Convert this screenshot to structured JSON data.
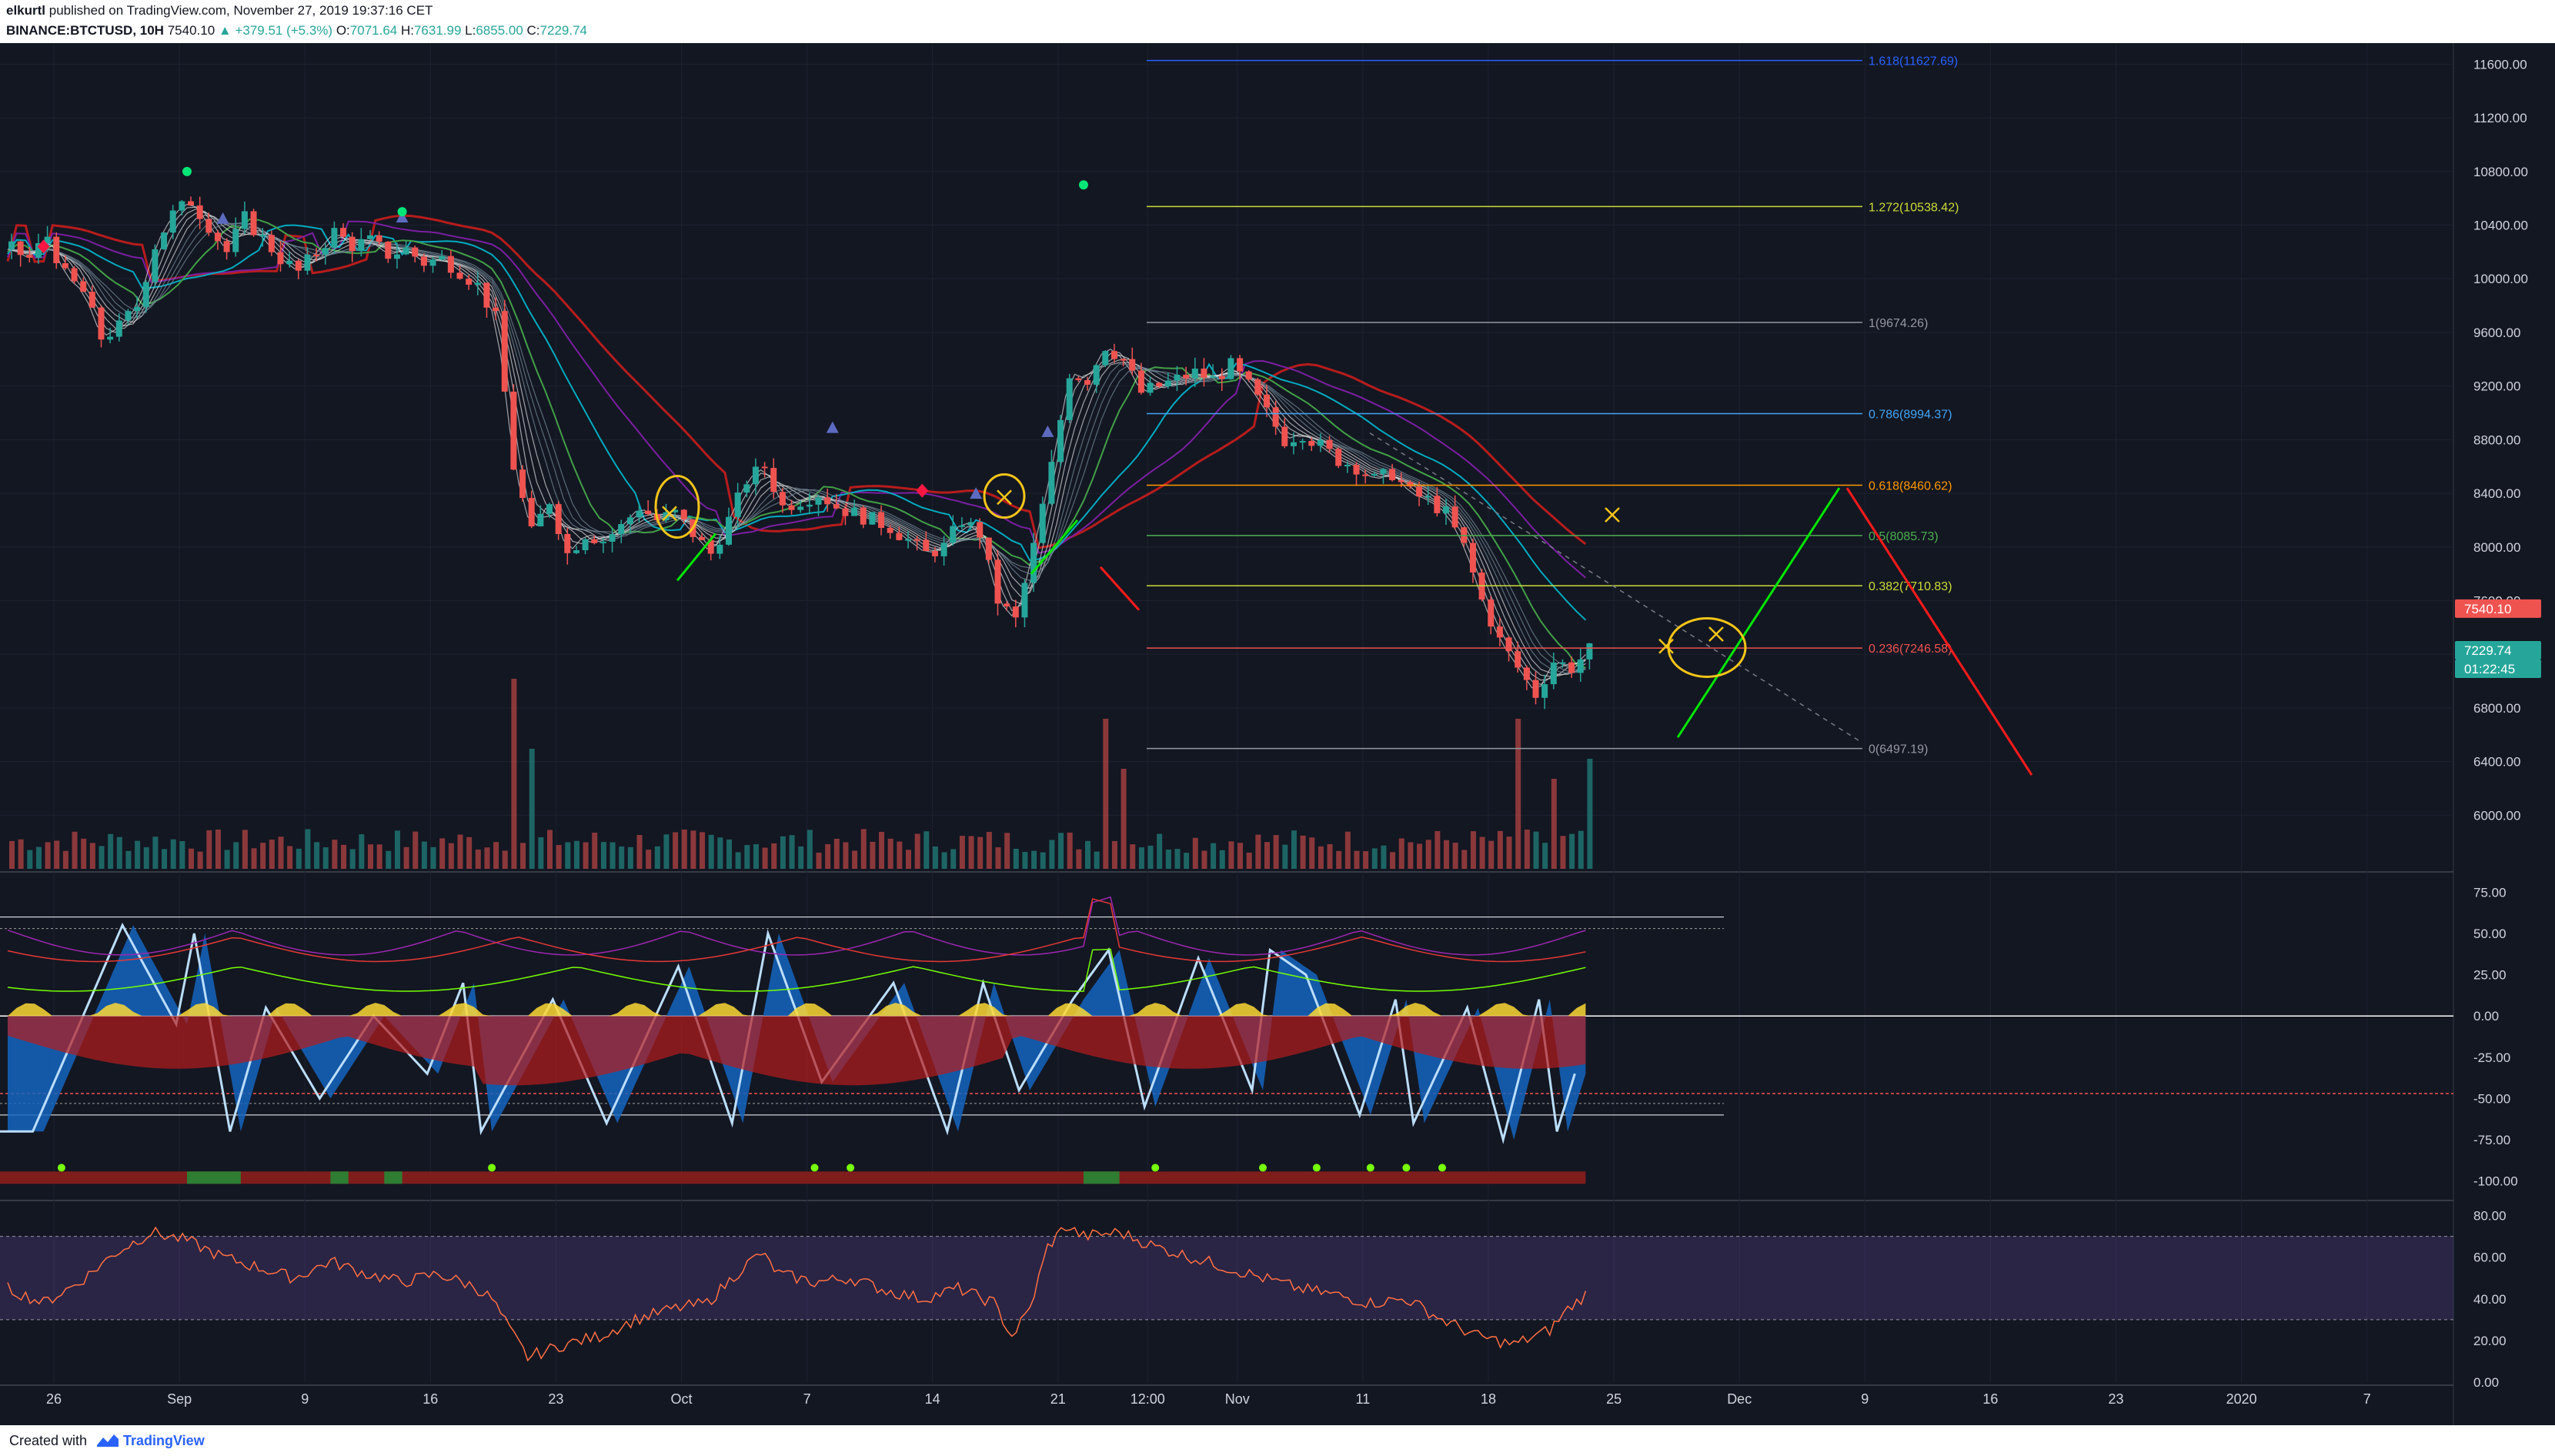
{
  "header": {
    "author": "elkurtl",
    "published_text": "published on TradingView.com, November 27, 2019 19:37:16 CET",
    "symbol": "BINANCE:BTCTUSD, 10H",
    "last": "7540.10",
    "change": "▲ +379.51 (+5.3%)",
    "o_label": "O:",
    "o_value": "7071.64",
    "h_label": "H:",
    "h_value": "7631.99",
    "l_label": "L:",
    "l_value": "6855.00",
    "c_label": "C:",
    "c_value": "7229.74"
  },
  "footer": {
    "created_with": "Created with",
    "brand": "TradingView"
  },
  "colors": {
    "bg": "#131722",
    "grid": "#1e2230",
    "axis_text": "#d1d4dc",
    "up": "#26a69a",
    "down": "#ef5350",
    "fib_text": "#b2b5be",
    "green_line": "#00e600",
    "red_line": "#ff1a1a",
    "yellow": "#f5c518"
  },
  "time_axis": {
    "labels": [
      {
        "t": 0,
        "text": "26"
      },
      {
        "t": 7,
        "text": "Sep"
      },
      {
        "t": 14,
        "text": "9"
      },
      {
        "t": 21,
        "text": "16"
      },
      {
        "t": 28,
        "text": "23"
      },
      {
        "t": 35,
        "text": "Oct"
      },
      {
        "t": 42,
        "text": "7"
      },
      {
        "t": 49,
        "text": "14"
      },
      {
        "t": 56,
        "text": "21"
      },
      {
        "t": 61,
        "text": "12:00"
      },
      {
        "t": 66,
        "text": "Nov"
      },
      {
        "t": 73,
        "text": "11"
      },
      {
        "t": 80,
        "text": "18"
      },
      {
        "t": 87,
        "text": "25"
      },
      {
        "t": 94,
        "text": "Dec"
      },
      {
        "t": 101,
        "text": "9"
      },
      {
        "t": 108,
        "text": "16"
      },
      {
        "t": 115,
        "text": "23"
      },
      {
        "t": 122,
        "text": "2020"
      },
      {
        "t": 129,
        "text": "7"
      }
    ]
  },
  "chart_data": [
    {
      "type": "candlestick",
      "title": "",
      "price_axis_ticks": [
        "11600.00",
        "11200.00",
        "10800.00",
        "10400.00",
        "10000.00",
        "9600.00",
        "9200.00",
        "8800.00",
        "8400.00",
        "8000.00",
        "7600.00",
        "7200.00",
        "6800.00",
        "6400.00",
        "6000.00"
      ],
      "ylim": [
        5600,
        11700
      ],
      "price_badges": [
        {
          "text": "7540.10",
          "value": 7540.1,
          "color": "#ef5350"
        },
        {
          "text": "7229.74",
          "value": 7229.74,
          "color": "#26a69a"
        },
        {
          "text": "01:22:45",
          "value": 7229.74,
          "color": "#26a69a",
          "row": 2
        }
      ],
      "fibonacci": [
        {
          "label": "1.618(11627.69)",
          "value": 11627.69,
          "color": "#2962ff"
        },
        {
          "label": "1.272(10538.42)",
          "value": 10538.42,
          "color": "#cddc39"
        },
        {
          "label": "1(9674.26)",
          "value": 9674.26,
          "color": "#9598a1"
        },
        {
          "label": "0.786(8994.37)",
          "value": 8994.37,
          "color": "#42a5f5"
        },
        {
          "label": "0.618(8460.62)",
          "value": 8460.62,
          "color": "#ff9800"
        },
        {
          "label": "0.5(8085.73)",
          "value": 8085.73,
          "color": "#4caf50"
        },
        {
          "label": "0.382(7710.83)",
          "value": 7710.83,
          "color": "#cddc39"
        },
        {
          "label": "0.236(7246.58)",
          "value": 7246.58,
          "color": "#ef5350"
        },
        {
          "label": "0(6497.19)",
          "value": 6497.19,
          "color": "#9598a1"
        }
      ],
      "close_path_keypoints": [
        [
          0,
          10220
        ],
        [
          1,
          10150
        ],
        [
          2,
          10320
        ],
        [
          3,
          10020
        ],
        [
          4,
          9900
        ],
        [
          5,
          9560
        ],
        [
          6,
          9640
        ],
        [
          7,
          9800
        ],
        [
          8,
          10250
        ],
        [
          9,
          10480
        ],
        [
          10,
          10580
        ],
        [
          11,
          10400
        ],
        [
          12,
          10200
        ],
        [
          13,
          10450
        ],
        [
          14,
          10300
        ],
        [
          15,
          10150
        ],
        [
          16,
          10050
        ],
        [
          17,
          10200
        ],
        [
          18,
          10350
        ],
        [
          19,
          10250
        ],
        [
          20,
          10280
        ],
        [
          21,
          10180
        ],
        [
          22,
          10220
        ],
        [
          23,
          10120
        ],
        [
          24,
          10150
        ],
        [
          25,
          10060
        ],
        [
          26,
          9950
        ],
        [
          27,
          9700
        ],
        [
          28,
          8600
        ],
        [
          29,
          8100
        ],
        [
          30,
          8350
        ],
        [
          31,
          7950
        ],
        [
          32,
          8100
        ],
        [
          33,
          8050
        ],
        [
          34,
          8150
        ],
        [
          35,
          8300
        ],
        [
          36,
          8200
        ],
        [
          37,
          8250
        ],
        [
          38,
          8100
        ],
        [
          39,
          7950
        ],
        [
          40,
          8200
        ],
        [
          41,
          8500
        ],
        [
          42,
          8600
        ],
        [
          43,
          8300
        ],
        [
          44,
          8350
        ],
        [
          45,
          8400
        ],
        [
          46,
          8300
        ],
        [
          47,
          8250
        ],
        [
          48,
          8200
        ],
        [
          49,
          8150
        ],
        [
          50,
          8050
        ],
        [
          51,
          7950
        ],
        [
          52,
          8000
        ],
        [
          53,
          8200
        ],
        [
          54,
          8100
        ],
        [
          55,
          7600
        ],
        [
          56,
          7450
        ],
        [
          57,
          8000
        ],
        [
          58,
          8600
        ],
        [
          59,
          9300
        ],
        [
          60,
          9250
        ],
        [
          61,
          9500
        ],
        [
          62,
          9400
        ],
        [
          63,
          9150
        ],
        [
          64,
          9200
        ],
        [
          65,
          9250
        ],
        [
          66,
          9300
        ],
        [
          67,
          9250
        ],
        [
          68,
          9350
        ],
        [
          69,
          9200
        ],
        [
          70,
          9000
        ],
        [
          71,
          8800
        ],
        [
          72,
          8850
        ],
        [
          73,
          8750
        ],
        [
          74,
          8650
        ],
        [
          75,
          8600
        ],
        [
          76,
          8500
        ],
        [
          77,
          8550
        ],
        [
          78,
          8400
        ],
        [
          79,
          8350
        ],
        [
          80,
          8250
        ],
        [
          81,
          8000
        ],
        [
          82,
          7600
        ],
        [
          83,
          7300
        ],
        [
          84,
          7100
        ],
        [
          85,
          6900
        ],
        [
          86,
          7150
        ],
        [
          87,
          7100
        ],
        [
          88,
          7229.74
        ]
      ],
      "volume_relative_spikes": [
        [
          28,
          0.95
        ],
        [
          29,
          0.6
        ],
        [
          61,
          0.75
        ],
        [
          62,
          0.5
        ],
        [
          84,
          0.75
        ],
        [
          88,
          0.55
        ],
        [
          86,
          0.45
        ]
      ]
    },
    {
      "type": "line",
      "title": "",
      "panel": "oscillator",
      "y_ticks": [
        "75.00",
        "50.00",
        "25.00",
        "0.00",
        "-25.00",
        "-50.00",
        "-75.00",
        "-100.00"
      ],
      "ylim": [
        -110,
        85
      ],
      "ref_lines": [
        60,
        53,
        -53,
        -60
      ],
      "wave_troughs": [
        [
          2,
          -70
        ],
        [
          10,
          -5
        ],
        [
          13,
          -70
        ],
        [
          18,
          -50
        ],
        [
          24,
          -35
        ],
        [
          27,
          -70
        ],
        [
          34,
          -65
        ],
        [
          41,
          -65
        ],
        [
          46,
          -40
        ],
        [
          53,
          -70
        ],
        [
          57,
          -45
        ],
        [
          64,
          -55
        ],
        [
          70,
          -45
        ],
        [
          76,
          -60
        ],
        [
          79,
          -65
        ],
        [
          84,
          -75
        ],
        [
          87,
          -70
        ]
      ],
      "wave_peaks": [
        [
          7,
          55
        ],
        [
          11,
          50
        ],
        [
          15,
          5
        ],
        [
          21,
          0
        ],
        [
          26,
          20
        ],
        [
          31,
          10
        ],
        [
          38,
          30
        ],
        [
          43,
          50
        ],
        [
          50,
          20
        ],
        [
          55,
          20
        ],
        [
          60,
          10
        ],
        [
          62,
          40
        ],
        [
          67,
          35
        ],
        [
          71,
          40
        ],
        [
          73,
          25
        ],
        [
          78,
          10
        ],
        [
          82,
          5
        ],
        [
          86,
          10
        ],
        [
          88,
          -35
        ]
      ]
    },
    {
      "type": "line",
      "title": "",
      "panel": "rsi",
      "y_ticks": [
        "80.00",
        "60.00",
        "40.00",
        "20.00",
        "0.00"
      ],
      "ylim": [
        0,
        85
      ],
      "band": [
        30,
        70
      ],
      "keypoints": [
        [
          0,
          45
        ],
        [
          2,
          38
        ],
        [
          4,
          48
        ],
        [
          6,
          62
        ],
        [
          8,
          72
        ],
        [
          10,
          68
        ],
        [
          12,
          60
        ],
        [
          14,
          55
        ],
        [
          16,
          50
        ],
        [
          18,
          58
        ],
        [
          20,
          52
        ],
        [
          22,
          48
        ],
        [
          24,
          52
        ],
        [
          26,
          46
        ],
        [
          27,
          40
        ],
        [
          28,
          25
        ],
        [
          29,
          12
        ],
        [
          31,
          18
        ],
        [
          33,
          22
        ],
        [
          35,
          30
        ],
        [
          37,
          35
        ],
        [
          39,
          38
        ],
        [
          41,
          55
        ],
        [
          42,
          62
        ],
        [
          43,
          52
        ],
        [
          45,
          48
        ],
        [
          47,
          50
        ],
        [
          49,
          44
        ],
        [
          51,
          40
        ],
        [
          53,
          45
        ],
        [
          55,
          38
        ],
        [
          56,
          22
        ],
        [
          57,
          35
        ],
        [
          58,
          65
        ],
        [
          59,
          75
        ],
        [
          60,
          70
        ],
        [
          62,
          72
        ],
        [
          64,
          65
        ],
        [
          66,
          60
        ],
        [
          68,
          55
        ],
        [
          70,
          50
        ],
        [
          72,
          45
        ],
        [
          74,
          42
        ],
        [
          76,
          38
        ],
        [
          78,
          40
        ],
        [
          80,
          30
        ],
        [
          82,
          22
        ],
        [
          84,
          18
        ],
        [
          86,
          25
        ],
        [
          87,
          35
        ],
        [
          88,
          42
        ]
      ]
    }
  ]
}
